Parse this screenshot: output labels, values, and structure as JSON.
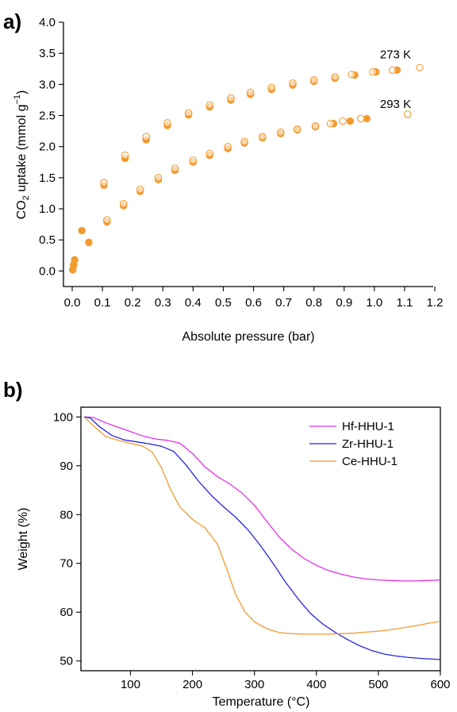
{
  "chart_data": [
    {
      "panel_label": "a)",
      "type": "scatter",
      "xlabel": "Absolute pressure (bar)",
      "ylabel_main": "CO",
      "ylabel_sub": "2",
      "ylabel_rest": " uptake (mmol g",
      "ylabel_sup": "−1",
      "ylabel_end": ")",
      "xlim": [
        0.0,
        1.2
      ],
      "ylim": [
        -0.25,
        4.0
      ],
      "xticks": [
        "0.0",
        "0.1",
        "0.2",
        "0.3",
        "0.4",
        "0.5",
        "0.6",
        "0.7",
        "0.8",
        "0.9",
        "1.0",
        "1.1",
        "1.2"
      ],
      "yticks": [
        "0.0",
        "0.5",
        "1.0",
        "1.5",
        "2.0",
        "2.5",
        "3.0",
        "3.5",
        "4.0"
      ],
      "marker_color": "#f39a2e",
      "series": [
        {
          "name": "273 K",
          "adsorption": [
            [
              0.002,
              0.02
            ],
            [
              0.005,
              0.1
            ],
            [
              0.008,
              0.18
            ],
            [
              0.032,
              0.65
            ],
            [
              0.105,
              1.38
            ],
            [
              0.175,
              1.81
            ],
            [
              0.245,
              2.11
            ],
            [
              0.315,
              2.34
            ],
            [
              0.385,
              2.51
            ],
            [
              0.455,
              2.64
            ],
            [
              0.525,
              2.75
            ],
            [
              0.59,
              2.84
            ],
            [
              0.66,
              2.92
            ],
            [
              0.73,
              2.99
            ],
            [
              0.8,
              3.05
            ],
            [
              0.87,
              3.1
            ],
            [
              0.935,
              3.15
            ],
            [
              1.005,
              3.2
            ],
            [
              1.075,
              3.23
            ]
          ],
          "desorption": [
            [
              0.105,
              1.42
            ],
            [
              0.175,
              1.86
            ],
            [
              0.245,
              2.16
            ],
            [
              0.315,
              2.38
            ],
            [
              0.385,
              2.54
            ],
            [
              0.455,
              2.67
            ],
            [
              0.525,
              2.78
            ],
            [
              0.59,
              2.87
            ],
            [
              0.66,
              2.95
            ],
            [
              0.73,
              3.02
            ],
            [
              0.8,
              3.07
            ],
            [
              0.87,
              3.12
            ],
            [
              0.925,
              3.16
            ],
            [
              0.995,
              3.2
            ],
            [
              1.06,
              3.23
            ],
            [
              1.15,
              3.27
            ]
          ],
          "label_at": [
            1.07,
            3.42
          ]
        },
        {
          "name": "293 K",
          "adsorption": [
            [
              0.002,
              0.02
            ],
            [
              0.005,
              0.1
            ],
            [
              0.055,
              0.46
            ],
            [
              0.115,
              0.79
            ],
            [
              0.17,
              1.05
            ],
            [
              0.225,
              1.28
            ],
            [
              0.285,
              1.47
            ],
            [
              0.34,
              1.62
            ],
            [
              0.4,
              1.75
            ],
            [
              0.455,
              1.86
            ],
            [
              0.515,
              1.97
            ],
            [
              0.57,
              2.06
            ],
            [
              0.63,
              2.14
            ],
            [
              0.69,
              2.21
            ],
            [
              0.745,
              2.27
            ],
            [
              0.805,
              2.32
            ],
            [
              0.865,
              2.37
            ],
            [
              0.92,
              2.41
            ],
            [
              0.975,
              2.45
            ]
          ],
          "desorption": [
            [
              0.115,
              0.82
            ],
            [
              0.17,
              1.08
            ],
            [
              0.225,
              1.31
            ],
            [
              0.285,
              1.5
            ],
            [
              0.34,
              1.65
            ],
            [
              0.4,
              1.78
            ],
            [
              0.455,
              1.89
            ],
            [
              0.515,
              2.0
            ],
            [
              0.57,
              2.08
            ],
            [
              0.63,
              2.16
            ],
            [
              0.69,
              2.23
            ],
            [
              0.745,
              2.28
            ],
            [
              0.805,
              2.33
            ],
            [
              0.855,
              2.37
            ],
            [
              0.895,
              2.41
            ],
            [
              0.955,
              2.45
            ],
            [
              1.11,
              2.52
            ]
          ],
          "label_at": [
            1.07,
            2.62
          ]
        }
      ]
    },
    {
      "panel_label": "b)",
      "type": "line",
      "xlabel": "Temperature (°C)",
      "ylabel": "Weight (%)",
      "xlim": [
        20,
        600
      ],
      "ylim": [
        48,
        102
      ],
      "xticks": [
        100,
        200,
        300,
        400,
        500,
        600
      ],
      "yticks": [
        50,
        60,
        70,
        80,
        90,
        100
      ],
      "legend_position": "top-right",
      "series": [
        {
          "name": "Hf-HHU-1",
          "color": "#e62ee6",
          "points": [
            [
              25,
              100
            ],
            [
              40,
              99.9
            ],
            [
              60,
              98.8
            ],
            [
              80,
              97.9
            ],
            [
              100,
              97
            ],
            [
              120,
              96.1
            ],
            [
              140,
              95.5
            ],
            [
              160,
              95.2
            ],
            [
              180,
              94.6
            ],
            [
              200,
              92.5
            ],
            [
              220,
              89.8
            ],
            [
              240,
              87.8
            ],
            [
              260,
              86.3
            ],
            [
              280,
              84.4
            ],
            [
              300,
              81.9
            ],
            [
              320,
              78.6
            ],
            [
              340,
              75.4
            ],
            [
              360,
              72.9
            ],
            [
              380,
              71
            ],
            [
              400,
              69.6
            ],
            [
              420,
              68.5
            ],
            [
              440,
              67.8
            ],
            [
              460,
              67.2
            ],
            [
              480,
              66.8
            ],
            [
              500,
              66.6
            ],
            [
              520,
              66.5
            ],
            [
              540,
              66.4
            ],
            [
              560,
              66.4
            ],
            [
              580,
              66.5
            ],
            [
              600,
              66.6
            ]
          ]
        },
        {
          "name": "Zr-HHU-1",
          "color": "#2424e0",
          "points": [
            [
              25,
              100
            ],
            [
              35,
              99.8
            ],
            [
              50,
              98
            ],
            [
              70,
              96.2
            ],
            [
              90,
              95.3
            ],
            [
              110,
              94.9
            ],
            [
              130,
              94.5
            ],
            [
              150,
              94
            ],
            [
              170,
              92.9
            ],
            [
              190,
              90.1
            ],
            [
              210,
              86.8
            ],
            [
              230,
              84
            ],
            [
              250,
              81.6
            ],
            [
              270,
              79.4
            ],
            [
              290,
              76.8
            ],
            [
              310,
              73.6
            ],
            [
              330,
              70
            ],
            [
              350,
              66.2
            ],
            [
              370,
              62.8
            ],
            [
              390,
              59.8
            ],
            [
              410,
              57.6
            ],
            [
              430,
              55.9
            ],
            [
              450,
              54.4
            ],
            [
              470,
              53.1
            ],
            [
              490,
              52.1
            ],
            [
              510,
              51.4
            ],
            [
              530,
              51
            ],
            [
              550,
              50.7
            ],
            [
              570,
              50.5
            ],
            [
              600,
              50.3
            ]
          ]
        },
        {
          "name": "Ce-HHU-1",
          "color": "#f39a2e",
          "points": [
            [
              25,
              100
            ],
            [
              40,
              98.2
            ],
            [
              60,
              96
            ],
            [
              80,
              95.2
            ],
            [
              100,
              94.6
            ],
            [
              120,
              94
            ],
            [
              135,
              92.8
            ],
            [
              150,
              89.6
            ],
            [
              165,
              85
            ],
            [
              180,
              81.5
            ],
            [
              200,
              79
            ],
            [
              220,
              77.3
            ],
            [
              240,
              74
            ],
            [
              255,
              69
            ],
            [
              270,
              63.5
            ],
            [
              285,
              60
            ],
            [
              300,
              58
            ],
            [
              320,
              56.6
            ],
            [
              340,
              55.8
            ],
            [
              360,
              55.6
            ],
            [
              380,
              55.5
            ],
            [
              400,
              55.5
            ],
            [
              420,
              55.5
            ],
            [
              440,
              55.6
            ],
            [
              460,
              55.7
            ],
            [
              480,
              55.9
            ],
            [
              500,
              56.1
            ],
            [
              520,
              56.4
            ],
            [
              540,
              56.8
            ],
            [
              560,
              57.2
            ],
            [
              580,
              57.7
            ],
            [
              600,
              58.1
            ]
          ]
        }
      ]
    }
  ]
}
